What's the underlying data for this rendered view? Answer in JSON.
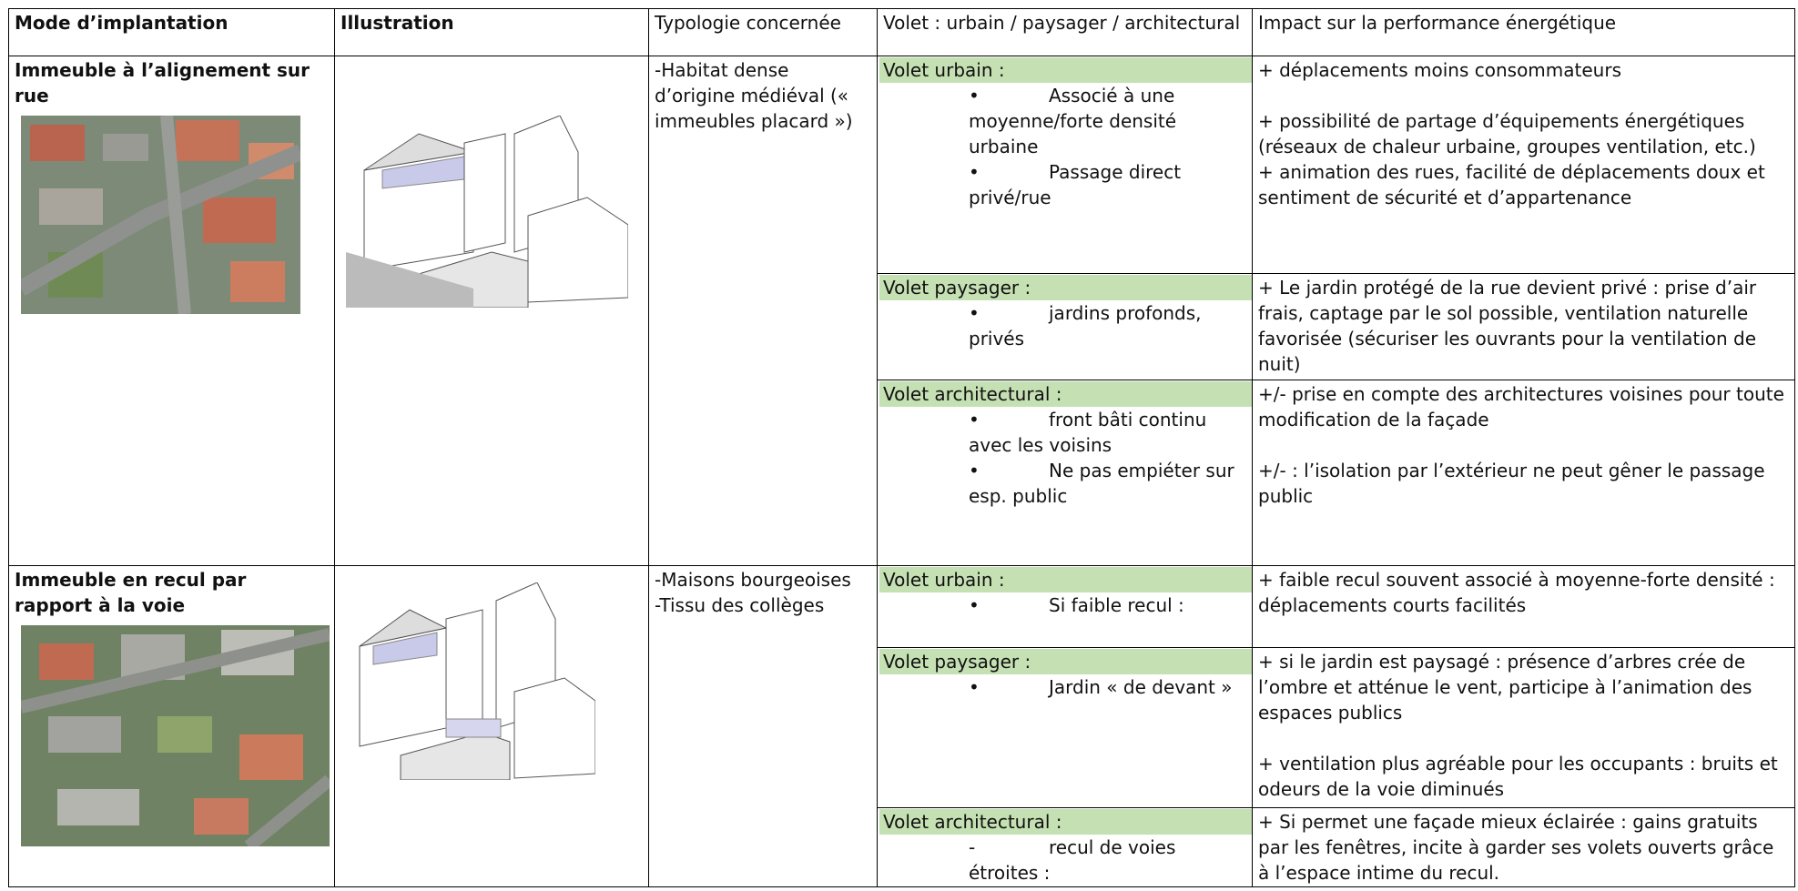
{
  "header": [
    "Mode d’implantation",
    "Illustration",
    "Typologie concernée",
    "Volet : urbain / paysager / architectural",
    "Impact sur la performance énergétique"
  ],
  "rows": [
    {
      "mode": "Immeuble à l’alignement sur rue",
      "typologie": [
        "-Habitat dense d’origine médiéval (« immeubles placard »)"
      ],
      "volets": [
        {
          "label": "Volet urbain :",
          "items": [
            {
              "marker": "•",
              "text": "Associé à une moyenne/forte densité urbaine"
            },
            {
              "marker": "•",
              "text": "Passage direct privé/rue"
            }
          ],
          "impacts": [
            "+ déplacements moins consommateurs",
            "+ possibilité de partage d’équipements énergétiques (réseaux de chaleur urbaine, groupes ventilation, etc.)",
            "+ animation des rues, facilité de déplacements doux et sentiment de sécurité et d’appartenance"
          ]
        },
        {
          "label": "Volet paysager :",
          "items": [
            {
              "marker": "•",
              "text": "jardins profonds, privés"
            }
          ],
          "impacts": [
            "+ Le jardin protégé de la rue devient privé : prise d’air frais, captage par le sol possible, ventilation naturelle favorisée (sécuriser les ouvrants pour la ventilation de nuit)"
          ]
        },
        {
          "label": "Volet architectural :",
          "items": [
            {
              "marker": "•",
              "text": "front bâti continu avec les voisins"
            },
            {
              "marker": "•",
              "text": "Ne pas empiéter sur esp. public"
            }
          ],
          "impacts": [
            "+/- prise en compte des architectures voisines pour toute modification de la façade",
            "+/- : l’isolation par l’extérieur ne peut gêner le passage public"
          ]
        }
      ]
    },
    {
      "mode": "Immeuble en recul par rapport à la voie",
      "typologie": [
        "-Maisons bourgeoises",
        "-Tissu des collèges"
      ],
      "volets": [
        {
          "label": "Volet urbain :",
          "items": [
            {
              "marker": "•",
              "text": "Si faible recul :"
            }
          ],
          "impacts": [
            "+ faible recul souvent associé à moyenne-forte densité : déplacements courts facilités"
          ]
        },
        {
          "label": "Volet paysager :",
          "items": [
            {
              "marker": "•",
              "text": "Jardin « de devant »"
            }
          ],
          "impacts": [
            "+ si le jardin est paysagé : présence d’arbres crée de l’ombre et atténue le vent, participe à l’animation des espaces publics",
            "+ ventilation plus agréable pour les occupants : bruits et odeurs de la voie diminués"
          ]
        },
        {
          "label": "Volet architectural :",
          "items": [
            {
              "marker": "-",
              "text": "recul de voies étroites :"
            }
          ],
          "impacts": [
            "+ Si permet une façade mieux éclairée : gains gratuits par les fenêtres, incite à garder ses volets ouverts grâce à l’espace intime du recul."
          ]
        }
      ]
    }
  ]
}
